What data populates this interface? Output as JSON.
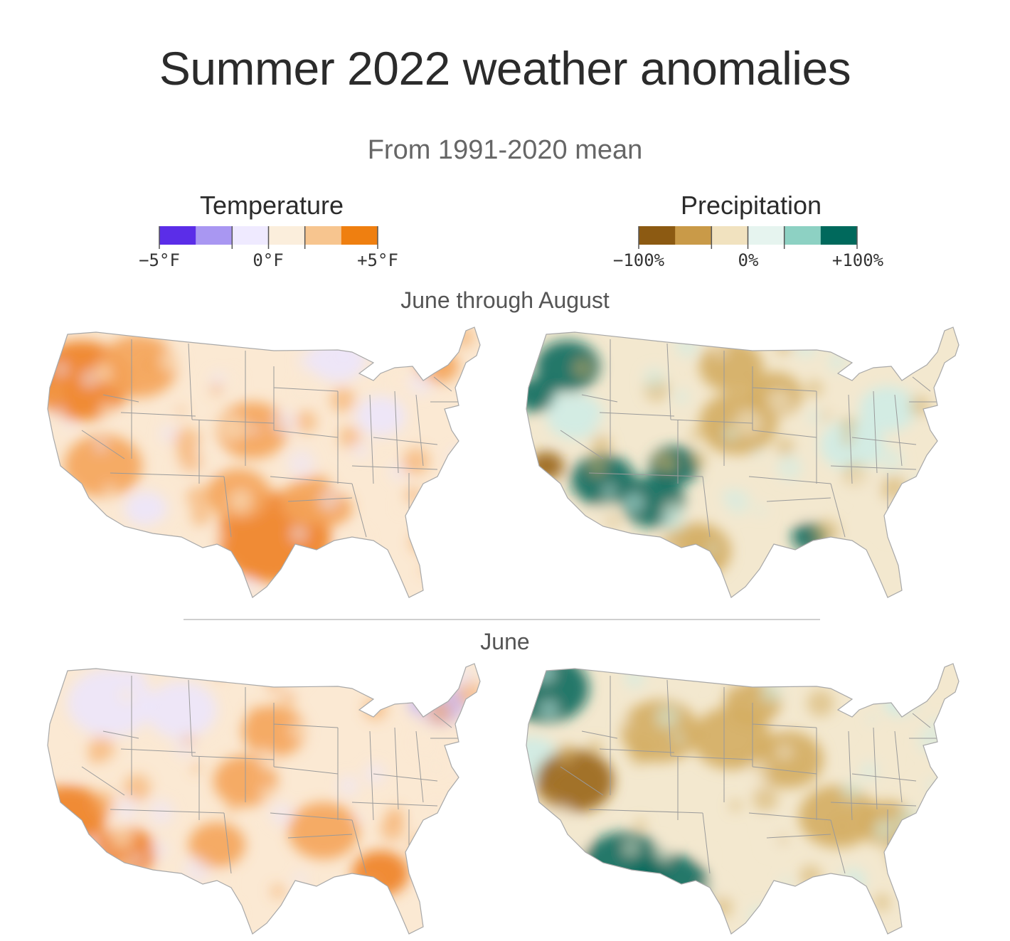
{
  "header": {
    "title": "Summer 2022 weather anomalies",
    "subtitle": "From 1991-2020 mean"
  },
  "legends": {
    "temperature": {
      "title": "Temperature",
      "ticks": [
        "−5°F",
        "0°F",
        "+5°F"
      ],
      "colors": [
        "#5b2de8",
        "#a997f2",
        "#efeaff",
        "#fbeedc",
        "#f7c58f",
        "#ef7f10"
      ]
    },
    "precipitation": {
      "title": "Precipitation",
      "ticks": [
        "−100%",
        "0%",
        "+100%"
      ],
      "colors": [
        "#8c5a12",
        "#c99a48",
        "#f1e2bf",
        "#e6f4ef",
        "#8dd1c3",
        "#00695c"
      ]
    }
  },
  "sections": [
    {
      "label": "June through August"
    },
    {
      "label": "June"
    }
  ],
  "map_colors": {
    "temp_base": "#fbe9d3",
    "temp_warm": "#f4a45a",
    "temp_hot": "#ee8122",
    "temp_cool": "#ece6fb",
    "temp_cold": "#c9b9f5",
    "precip_base": "#f3e8cf",
    "precip_dry": "#d4ad62",
    "precip_vdry": "#9a6518",
    "precip_wet": "#cfece5",
    "precip_vwet": "#0e6b5e",
    "border": "#9a9a9a"
  }
}
